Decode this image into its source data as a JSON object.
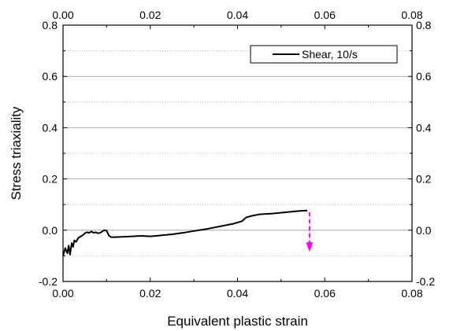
{
  "chart_data": {
    "type": "line",
    "title": "",
    "xlabel": "Equivalent plastic strain",
    "ylabel": "Stress triaxiality",
    "xlim": [
      0.0,
      0.08
    ],
    "ylim": [
      -0.2,
      0.8
    ],
    "x_ticks": [
      0.0,
      0.02,
      0.04,
      0.06,
      0.08
    ],
    "x_tick_labels": [
      "0.00",
      "0.02",
      "0.04",
      "0.06",
      "0.08"
    ],
    "y_ticks": [
      -0.2,
      0.0,
      0.2,
      0.4,
      0.6,
      0.8
    ],
    "y_tick_labels": [
      "-0.2",
      "0.0",
      "0.2",
      "0.4",
      "0.6",
      "0.8"
    ],
    "top_axis_tick_labels": [
      "0.00",
      "0.02",
      "0.04",
      "0.06",
      "0.08"
    ],
    "right_axis_tick_labels": [
      "-0.2",
      "0.0",
      "0.2",
      "0.4",
      "0.6",
      "0.8"
    ],
    "grid": "horizontal dotted minor, solid major",
    "legend_position": "top-right",
    "series": [
      {
        "name": "Shear, 10/s",
        "color": "#000000",
        "x": [
          0.0,
          0.0005,
          0.001,
          0.0013,
          0.0016,
          0.002,
          0.0023,
          0.0026,
          0.003,
          0.0035,
          0.004,
          0.0045,
          0.005,
          0.0055,
          0.006,
          0.0065,
          0.007,
          0.0075,
          0.008,
          0.0085,
          0.009,
          0.0095,
          0.01,
          0.0105,
          0.011,
          0.012,
          0.015,
          0.018,
          0.02,
          0.022,
          0.025,
          0.028,
          0.03,
          0.033,
          0.036,
          0.039,
          0.041,
          0.042,
          0.043,
          0.045,
          0.048,
          0.051,
          0.054,
          0.056
        ],
        "y": [
          -0.1,
          -0.07,
          -0.09,
          -0.06,
          -0.095,
          -0.05,
          -0.065,
          -0.04,
          -0.045,
          -0.03,
          -0.025,
          -0.02,
          -0.012,
          -0.008,
          -0.01,
          -0.005,
          -0.01,
          -0.008,
          -0.012,
          -0.01,
          -0.005,
          0.0,
          -0.002,
          -0.02,
          -0.027,
          -0.027,
          -0.025,
          -0.022,
          -0.024,
          -0.021,
          -0.016,
          -0.009,
          -0.003,
          0.005,
          0.015,
          0.025,
          0.035,
          0.05,
          0.055,
          0.062,
          0.065,
          0.07,
          0.075,
          0.077
        ]
      }
    ],
    "annotations": [
      {
        "type": "dashed-arrow",
        "color": "#ff00ff",
        "x": 0.0565,
        "y_start": 0.07,
        "y_end": -0.075
      }
    ]
  }
}
